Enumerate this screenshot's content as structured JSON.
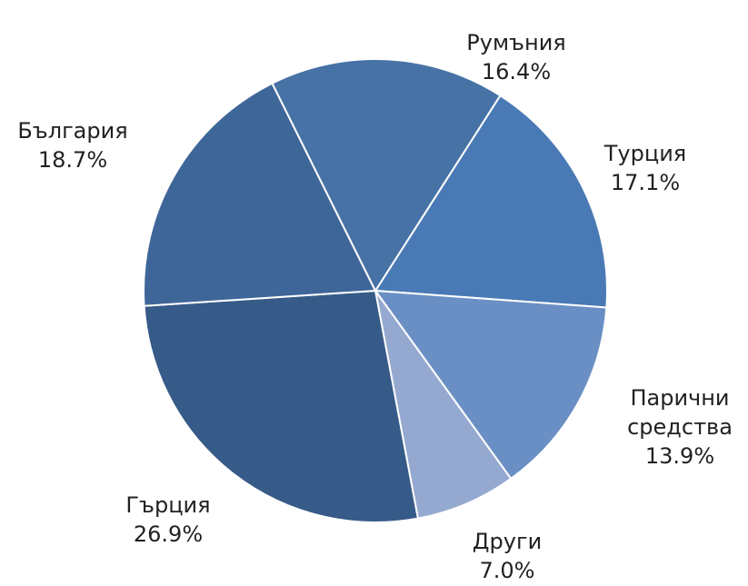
{
  "chart_data": {
    "type": "pie",
    "categories": [
      "Турция",
      "Парични средства",
      "Други",
      "Гърция",
      "България",
      "Румъния"
    ],
    "values": [
      17.1,
      13.9,
      7.0,
      26.9,
      18.7,
      16.4
    ],
    "value_labels": [
      "17.1%",
      "13.9%",
      "7.0%",
      "26.9%",
      "18.7%",
      "16.4%"
    ],
    "colors": [
      "#4a7ab5",
      "#6a8fc4",
      "#95a9d0",
      "#375b88",
      "#3f6699",
      "#4672a6"
    ]
  }
}
